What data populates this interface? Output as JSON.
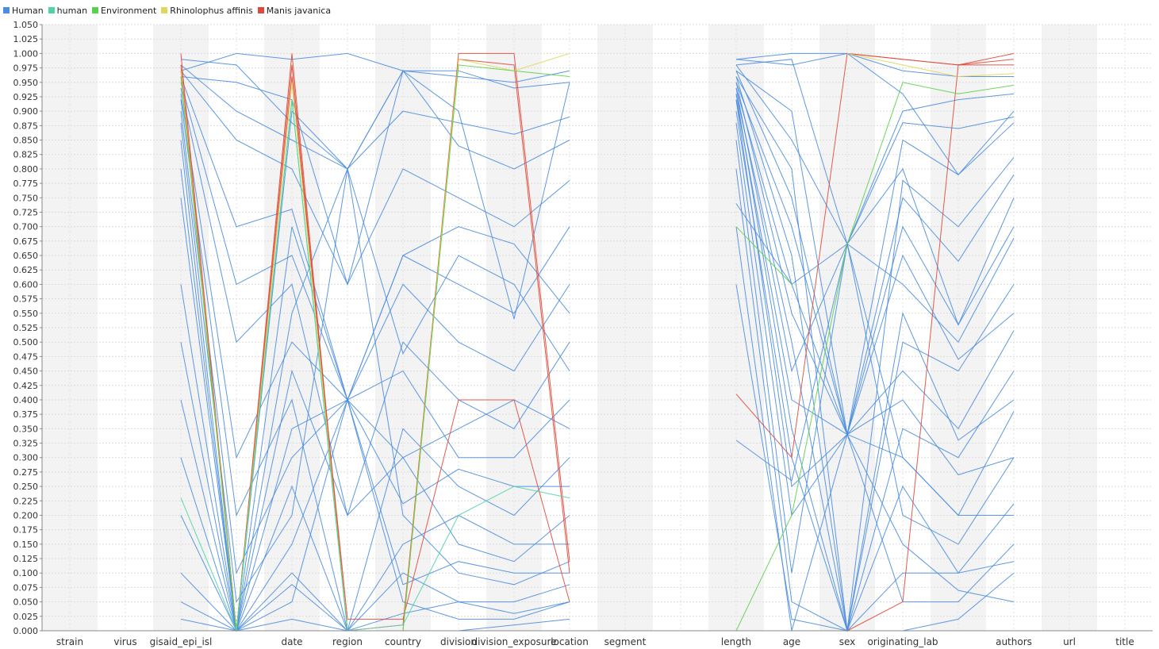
{
  "chart_data": {
    "type": "parallel_coordinates",
    "legend_placement": "top-left",
    "grid": true,
    "legend": [
      {
        "name": "Human",
        "color": "#4a8de0"
      },
      {
        "name": "human",
        "color": "#4fd4a8"
      },
      {
        "name": "Environment",
        "color": "#5ad14a"
      },
      {
        "name": "Rhinolophus affinis",
        "color": "#e0d85a"
      },
      {
        "name": "Manis javanica",
        "color": "#e0493a"
      }
    ],
    "axes": [
      "strain",
      "virus",
      "gisaid_epi_isl",
      "",
      "date",
      "region",
      "country",
      "division",
      "division_exposure",
      "location",
      "segment",
      "",
      "length",
      "age",
      "sex",
      "originating_lab",
      "",
      "authors",
      "url",
      "title"
    ],
    "ylim": [
      0.0,
      1.05
    ],
    "yticks": [
      "0.000",
      "0.025",
      "0.050",
      "0.075",
      "0.100",
      "0.125",
      "0.150",
      "0.175",
      "0.200",
      "0.225",
      "0.250",
      "0.275",
      "0.300",
      "0.325",
      "0.350",
      "0.375",
      "0.400",
      "0.425",
      "0.450",
      "0.475",
      "0.500",
      "0.525",
      "0.550",
      "0.575",
      "0.600",
      "0.625",
      "0.650",
      "0.675",
      "0.700",
      "0.725",
      "0.750",
      "0.775",
      "0.800",
      "0.825",
      "0.850",
      "0.875",
      "0.900",
      "0.925",
      "0.950",
      "0.975",
      "1.000",
      "1.025",
      "1.050"
    ],
    "series": [
      {
        "legend": 4,
        "values": [
          null,
          null,
          1.0,
          0.0,
          1.0,
          0.0,
          0.0,
          1.0,
          1.0,
          0.12,
          null,
          null,
          0.41,
          0.3,
          1.0,
          0.99,
          0.98,
          1.0,
          null,
          null
        ]
      },
      {
        "legend": 4,
        "values": [
          null,
          null,
          0.98,
          0.0,
          0.98,
          0.0,
          0.01,
          0.99,
          0.98,
          0.1,
          null,
          null,
          null,
          null,
          1.0,
          0.99,
          0.98,
          0.99,
          null,
          null
        ]
      },
      {
        "legend": 4,
        "values": [
          null,
          null,
          0.97,
          0.0,
          0.96,
          0.02,
          0.02,
          0.4,
          0.4,
          0.05,
          null,
          null,
          null,
          null,
          0.0,
          0.05,
          0.98,
          0.98,
          null,
          null
        ]
      },
      {
        "legend": 3,
        "values": [
          null,
          null,
          0.97,
          0.0,
          0.95,
          0.0,
          0.0,
          0.99,
          0.97,
          1.0,
          null,
          null,
          null,
          null,
          1.0,
          0.98,
          0.96,
          0.965,
          null,
          null
        ]
      },
      {
        "legend": 2,
        "values": [
          null,
          null,
          0.96,
          0.0,
          0.92,
          0.0,
          0.0,
          0.98,
          0.97,
          0.96,
          null,
          null,
          0.0,
          0.2,
          0.67,
          0.95,
          0.93,
          0.945,
          null,
          null
        ]
      },
      {
        "legend": 2,
        "values": [
          null,
          null,
          null,
          null,
          null,
          null,
          null,
          null,
          null,
          null,
          null,
          null,
          0.7,
          0.6,
          null,
          null,
          null,
          null,
          null,
          null
        ]
      },
      {
        "legend": 1,
        "values": [
          null,
          null,
          0.23,
          0.0,
          0.92,
          0.0,
          0.01,
          0.2,
          0.25,
          0.23,
          null,
          null,
          null,
          null,
          null,
          null,
          null,
          null,
          null,
          null
        ]
      },
      {
        "legend": 0,
        "values": [
          null,
          null,
          0.99,
          0.98,
          0.88,
          0.8,
          0.97,
          0.97,
          0.94,
          0.95,
          null,
          null,
          0.99,
          1.0,
          1.0,
          0.97,
          0.96,
          0.96,
          null,
          null
        ]
      },
      {
        "legend": 0,
        "values": [
          null,
          null,
          0.98,
          0.9,
          0.85,
          0.8,
          0.9,
          0.88,
          0.86,
          0.89,
          null,
          null,
          0.98,
          0.99,
          0.67,
          0.9,
          0.92,
          0.93,
          null,
          null
        ]
      },
      {
        "legend": 0,
        "values": [
          null,
          null,
          0.97,
          0.85,
          0.8,
          0.6,
          0.8,
          0.75,
          0.7,
          0.78,
          null,
          null,
          0.97,
          0.9,
          0.34,
          0.85,
          0.79,
          0.88,
          null,
          null
        ]
      },
      {
        "legend": 0,
        "values": [
          null,
          null,
          0.96,
          0.7,
          0.73,
          0.4,
          0.65,
          0.6,
          0.55,
          0.7,
          null,
          null,
          0.96,
          0.8,
          0.0,
          0.78,
          0.7,
          0.82,
          null,
          null
        ]
      },
      {
        "legend": 0,
        "values": [
          null,
          null,
          0.95,
          0.6,
          0.65,
          0.4,
          0.6,
          0.5,
          0.45,
          0.6,
          null,
          null,
          0.95,
          0.7,
          0.34,
          0.7,
          0.53,
          0.75,
          null,
          null
        ]
      },
      {
        "legend": 0,
        "values": [
          null,
          null,
          0.94,
          0.5,
          0.6,
          0.2,
          0.5,
          0.4,
          0.35,
          0.5,
          null,
          null,
          0.94,
          0.6,
          0.67,
          0.6,
          0.5,
          0.68,
          null,
          null
        ]
      },
      {
        "legend": 0,
        "values": [
          null,
          null,
          0.93,
          0.3,
          0.5,
          0.4,
          0.45,
          0.3,
          0.3,
          0.4,
          null,
          null,
          0.93,
          0.5,
          0.0,
          0.5,
          0.45,
          0.6,
          null,
          null
        ]
      },
      {
        "legend": 0,
        "values": [
          null,
          null,
          0.92,
          0.2,
          0.4,
          0.0,
          0.35,
          0.25,
          0.2,
          0.3,
          null,
          null,
          0.92,
          0.4,
          0.34,
          0.45,
          0.35,
          0.52,
          null,
          null
        ]
      },
      {
        "legend": 0,
        "values": [
          null,
          null,
          0.9,
          0.1,
          0.3,
          0.4,
          0.3,
          0.15,
          0.12,
          0.2,
          null,
          null,
          0.9,
          0.3,
          0.0,
          0.35,
          0.3,
          0.45,
          null,
          null
        ]
      },
      {
        "legend": 0,
        "values": [
          null,
          null,
          0.88,
          0.05,
          0.2,
          0.8,
          0.2,
          0.1,
          0.08,
          0.12,
          null,
          null,
          0.88,
          0.2,
          0.34,
          0.3,
          0.2,
          0.38,
          null,
          null
        ]
      },
      {
        "legend": 0,
        "values": [
          null,
          null,
          0.85,
          0.0,
          0.1,
          0.0,
          0.1,
          0.05,
          0.05,
          0.08,
          null,
          null,
          0.85,
          0.1,
          0.67,
          0.2,
          0.15,
          0.3,
          null,
          null
        ]
      },
      {
        "legend": 0,
        "values": [
          null,
          null,
          0.8,
          0.0,
          0.05,
          0.4,
          0.05,
          0.02,
          0.02,
          0.05,
          null,
          null,
          0.8,
          0.05,
          0.0,
          0.1,
          0.1,
          0.22,
          null,
          null
        ]
      },
      {
        "legend": 0,
        "values": [
          null,
          null,
          0.75,
          0.0,
          0.02,
          0.0,
          0.0,
          0.0,
          0.01,
          0.02,
          null,
          null,
          0.7,
          0.0,
          0.34,
          0.05,
          0.05,
          0.15,
          null,
          null
        ]
      },
      {
        "legend": 0,
        "values": [
          null,
          null,
          0.6,
          0.0,
          0.0,
          0.0,
          0.0,
          0.0,
          0.0,
          0.0,
          null,
          null,
          0.6,
          0.02,
          0.0,
          0.0,
          0.02,
          0.1,
          null,
          null
        ]
      },
      {
        "legend": 0,
        "values": [
          null,
          null,
          0.5,
          0.0,
          0.9,
          0.8,
          0.97,
          0.9,
          0.54,
          0.95,
          null,
          null,
          0.99,
          0.98,
          1.0,
          0.93,
          0.79,
          0.9,
          null,
          null
        ]
      },
      {
        "legend": 0,
        "values": [
          null,
          null,
          0.4,
          0.0,
          0.7,
          0.4,
          0.65,
          0.7,
          0.67,
          0.55,
          null,
          null,
          0.98,
          0.85,
          0.67,
          0.8,
          0.53,
          0.7,
          null,
          null
        ]
      },
      {
        "legend": 0,
        "values": [
          null,
          null,
          0.3,
          0.0,
          0.55,
          0.8,
          0.48,
          0.65,
          0.6,
          0.45,
          null,
          null,
          0.97,
          0.75,
          0.34,
          0.65,
          0.47,
          0.55,
          null,
          null
        ]
      },
      {
        "legend": 0,
        "values": [
          null,
          null,
          0.2,
          0.0,
          0.45,
          0.2,
          0.3,
          0.35,
          0.4,
          0.35,
          null,
          null,
          0.96,
          0.65,
          0.0,
          0.55,
          0.33,
          0.4,
          null,
          null
        ]
      },
      {
        "legend": 0,
        "values": [
          null,
          null,
          0.1,
          0.0,
          0.35,
          0.4,
          0.22,
          0.28,
          0.25,
          0.25,
          null,
          null,
          0.95,
          0.55,
          0.34,
          0.4,
          0.27,
          0.3,
          null,
          null
        ]
      },
      {
        "legend": 0,
        "values": [
          null,
          null,
          0.05,
          0.0,
          0.25,
          0.0,
          0.15,
          0.2,
          0.15,
          0.15,
          null,
          null,
          0.94,
          0.45,
          0.67,
          0.3,
          0.2,
          0.2,
          null,
          null
        ]
      },
      {
        "legend": 0,
        "values": [
          null,
          null,
          0.02,
          0.0,
          0.15,
          0.4,
          0.08,
          0.12,
          0.1,
          0.1,
          null,
          null,
          0.93,
          0.35,
          0.0,
          0.25,
          0.1,
          0.12,
          null,
          null
        ]
      },
      {
        "legend": 0,
        "values": [
          null,
          null,
          0.0,
          0.0,
          0.08,
          0.0,
          0.03,
          0.05,
          0.03,
          0.05,
          null,
          null,
          0.92,
          0.25,
          0.34,
          0.15,
          0.07,
          0.05,
          null,
          null
        ]
      },
      {
        "legend": 0,
        "values": [
          null,
          null,
          0.97,
          1.0,
          0.99,
          1.0,
          0.97,
          0.96,
          0.95,
          0.97,
          null,
          null,
          0.33,
          0.26,
          0.67,
          0.88,
          0.87,
          0.89,
          null,
          null
        ]
      },
      {
        "legend": 0,
        "values": [
          null,
          null,
          0.96,
          0.95,
          0.92,
          0.6,
          0.97,
          0.84,
          0.8,
          0.85,
          null,
          null,
          0.74,
          0.6,
          0.34,
          0.75,
          0.64,
          0.79,
          null,
          null
        ]
      }
    ]
  }
}
